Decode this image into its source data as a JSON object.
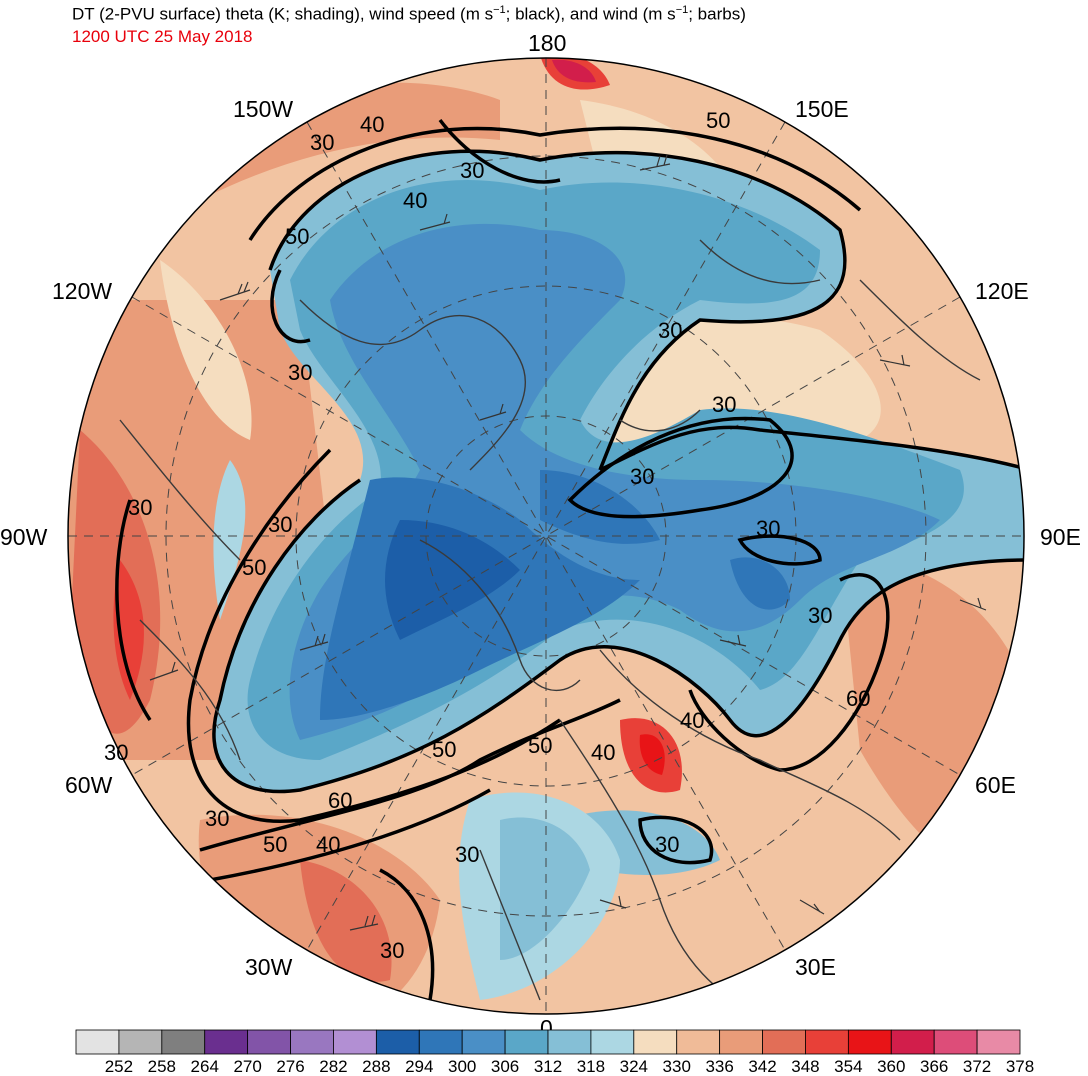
{
  "header": {
    "title_prefix": "DT (2-PVU surface) theta (K; shading), wind speed (m s",
    "title_mid": "; black), and wind (m s",
    "title_suffix": "; barbs)",
    "title_exp": "−1",
    "datetime": "1200 UTC 25 May 2018"
  },
  "map": {
    "projection": "north-polar-stereographic",
    "longitude_labels": {
      "top": "180",
      "150W": "150W",
      "150E": "150E",
      "120W": "120W",
      "120E": "120E",
      "90W": "90W",
      "90E": "90E",
      "60W": "60W",
      "60E": "60E",
      "30W": "30W",
      "30E": "30E",
      "bottom": "0"
    },
    "contour_labels": [
      "30",
      "40",
      "50",
      "30",
      "40",
      "50",
      "30",
      "30",
      "30",
      "30",
      "30",
      "30",
      "50",
      "30",
      "30",
      "60",
      "50",
      "40",
      "30",
      "50",
      "50",
      "40",
      "40",
      "30",
      "60",
      "30",
      "30"
    ]
  },
  "colorbar": {
    "labels": [
      "252",
      "258",
      "264",
      "270",
      "276",
      "282",
      "288",
      "294",
      "300",
      "306",
      "312",
      "318",
      "324",
      "330",
      "336",
      "342",
      "348",
      "354",
      "360",
      "366",
      "372",
      "378"
    ],
    "colors": [
      "#e3e3e3",
      "#b5b5b5",
      "#7f7f7f",
      "#6a2f8f",
      "#8254a8",
      "#9977c0",
      "#b28fd3",
      "#1c5ea8",
      "#2f76b8",
      "#4a8fc6",
      "#5aa7c8",
      "#85bfd6",
      "#acd7e3",
      "#f5ddbf",
      "#f0bb98",
      "#e99c79",
      "#e26e57",
      "#e84038",
      "#e81417",
      "#d21e4b",
      "#dd4d79",
      "#e88aa6"
    ]
  }
}
